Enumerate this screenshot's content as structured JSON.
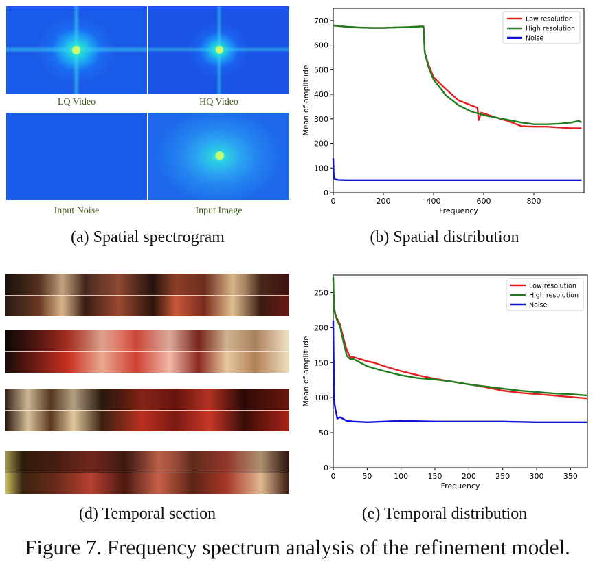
{
  "panels": {
    "spectrogram": {
      "caption": "(a) Spatial spectrogram",
      "labels": [
        "LQ Video",
        "HQ Video",
        "Input Noise",
        "Input Image"
      ]
    },
    "spatial_distribution": {
      "caption": "(b) Spatial distribution"
    },
    "temporal_section": {
      "caption": "(d) Temporal section"
    },
    "temporal_distribution": {
      "caption": "(e) Temporal distribution"
    }
  },
  "figure_caption": "Figure 7. Frequency spectrum analysis of the refinement model.",
  "colors": {
    "low": "#e32020",
    "high": "#1e7d1e",
    "noise": "#1010d8"
  },
  "chart_data": [
    {
      "type": "line",
      "title": "",
      "xlabel": "Frequency",
      "ylabel": "Mean of amplitude",
      "xlim": [
        0,
        1000
      ],
      "ylim": [
        0,
        750
      ],
      "xticks": [
        0,
        200,
        400,
        600,
        800
      ],
      "yticks": [
        0,
        100,
        200,
        300,
        400,
        500,
        600,
        700
      ],
      "legend": "top-right",
      "series": [
        {
          "name": "Low resolution",
          "color": "#e32020",
          "x": [
            0,
            50,
            100,
            150,
            200,
            250,
            300,
            350,
            360,
            365,
            380,
            400,
            450,
            500,
            550,
            575,
            580,
            590,
            600,
            650,
            700,
            750,
            800,
            850,
            900,
            950,
            990
          ],
          "y": [
            680,
            675,
            672,
            670,
            670,
            672,
            673,
            676,
            676,
            570,
            520,
            470,
            420,
            375,
            355,
            345,
            295,
            325,
            322,
            305,
            290,
            270,
            268,
            268,
            265,
            262,
            262
          ]
        },
        {
          "name": "High resolution",
          "color": "#1e7d1e",
          "x": [
            0,
            50,
            100,
            150,
            200,
            250,
            300,
            350,
            360,
            365,
            380,
            400,
            450,
            500,
            550,
            600,
            650,
            700,
            750,
            800,
            850,
            900,
            950,
            980,
            990
          ],
          "y": [
            680,
            675,
            672,
            670,
            670,
            672,
            673,
            676,
            676,
            570,
            510,
            460,
            395,
            355,
            330,
            315,
            305,
            295,
            285,
            278,
            278,
            280,
            285,
            292,
            285
          ]
        },
        {
          "name": "Noise",
          "color": "#1010d8",
          "x": [
            0,
            2,
            5,
            10,
            20,
            50,
            100,
            200,
            400,
            600,
            800,
            990
          ],
          "y": [
            140,
            70,
            57,
            54,
            52,
            51,
            51,
            51,
            51,
            51,
            51,
            51
          ]
        }
      ]
    },
    {
      "type": "line",
      "title": "",
      "xlabel": "Frequency",
      "ylabel": "Mean of amplitude",
      "xlim": [
        0,
        375
      ],
      "ylim": [
        0,
        275
      ],
      "xticks": [
        0,
        50,
        100,
        150,
        200,
        250,
        300,
        350
      ],
      "yticks": [
        0,
        50,
        100,
        150,
        200,
        250
      ],
      "legend": "top-right",
      "series": [
        {
          "name": "Low resolution",
          "color": "#e32020",
          "x": [
            0,
            1,
            3,
            6,
            10,
            15,
            20,
            25,
            30,
            40,
            50,
            60,
            75,
            100,
            125,
            150,
            175,
            200,
            225,
            250,
            275,
            300,
            325,
            350,
            375
          ],
          "y": [
            270,
            230,
            220,
            212,
            205,
            185,
            168,
            158,
            158,
            155,
            152,
            150,
            145,
            138,
            132,
            127,
            123,
            119,
            115,
            110,
            107,
            105,
            103,
            101,
            99
          ]
        },
        {
          "name": "High resolution",
          "color": "#1e7d1e",
          "x": [
            0,
            1,
            3,
            6,
            10,
            15,
            20,
            25,
            30,
            40,
            50,
            60,
            75,
            100,
            125,
            150,
            175,
            200,
            225,
            250,
            275,
            300,
            325,
            350,
            375
          ],
          "y": [
            272,
            228,
            218,
            210,
            202,
            180,
            160,
            155,
            155,
            150,
            145,
            142,
            138,
            132,
            128,
            126,
            123,
            119,
            116,
            113,
            110,
            108,
            106,
            105,
            103
          ]
        },
        {
          "name": "Noise",
          "color": "#1010d8",
          "x": [
            0,
            1,
            2,
            4,
            6,
            10,
            20,
            30,
            50,
            75,
            100,
            150,
            200,
            250,
            300,
            350,
            375
          ],
          "y": [
            210,
            120,
            90,
            80,
            70,
            72,
            67,
            66,
            65,
            66,
            67,
            66,
            66,
            66,
            65,
            65,
            65
          ]
        }
      ]
    }
  ]
}
